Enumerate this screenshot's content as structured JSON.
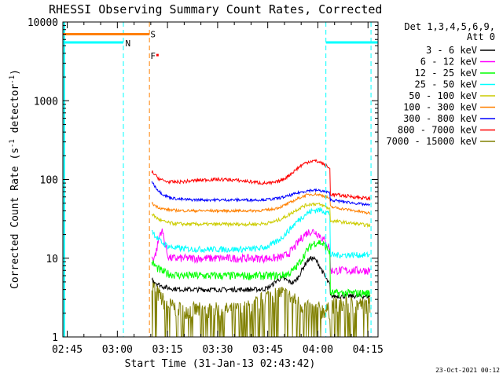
{
  "timestamp": "23-Oct-2021 00:12",
  "chart_data": {
    "type": "line",
    "title": "RHESSI Observing Summary Count Rates, Corrected",
    "xlabel": "Start Time (31-Jan-13 02:43:42)",
    "ylabel_main": "Corrected Count Rate (s",
    "ylabel_sup1": "-1",
    "ylabel_mid": " detector",
    "ylabel_sup2": "-1",
    "ylabel_end": ")",
    "y_scale": "log",
    "ylim": [
      1,
      10000
    ],
    "xlim_min": [
      2.7283,
      4.3
    ],
    "x_ticks": [
      {
        "label": "02:45",
        "min": 2.75
      },
      {
        "label": "03:00",
        "min": 3.0
      },
      {
        "label": "03:15",
        "min": 3.25
      },
      {
        "label": "03:30",
        "min": 3.5
      },
      {
        "label": "03:45",
        "min": 3.75
      },
      {
        "label": "04:00",
        "min": 4.0
      },
      {
        "label": "04:15",
        "min": 4.25
      }
    ],
    "y_ticks": [
      {
        "label": "1",
        "value": 1
      },
      {
        "label": "10",
        "value": 10
      },
      {
        "label": "100",
        "value": 100
      },
      {
        "label": "1000",
        "value": 1000
      },
      {
        "label": "10000",
        "value": 10000
      }
    ],
    "legend": {
      "placement": "right",
      "header1": "Det 1,3,4,5,6,9,",
      "header2": "Att 0"
    },
    "annotations": [
      {
        "label": "N",
        "color": "#00ffff"
      },
      {
        "label": "S",
        "color": "#ff8000"
      },
      {
        "label": "F",
        "color": "#ff0000"
      }
    ],
    "series": [
      {
        "name": "3 - 6 keV",
        "color": "#000000"
      },
      {
        "name": "6 - 12 keV",
        "color": "#ff00ff"
      },
      {
        "name": "12 - 25 keV",
        "color": "#00ff00"
      },
      {
        "name": "25 - 50 keV",
        "color": "#00ffff"
      },
      {
        "name": "50 - 100 keV",
        "color": "#cccc00"
      },
      {
        "name": "100 - 300 keV",
        "color": "#ff8000"
      },
      {
        "name": "300 - 800 keV",
        "color": "#0000ff"
      },
      {
        "name": "800 - 7000 keV",
        "color": "#ff0000"
      },
      {
        "name": "7000 - 15000 keV",
        "color": "#808000"
      }
    ]
  }
}
